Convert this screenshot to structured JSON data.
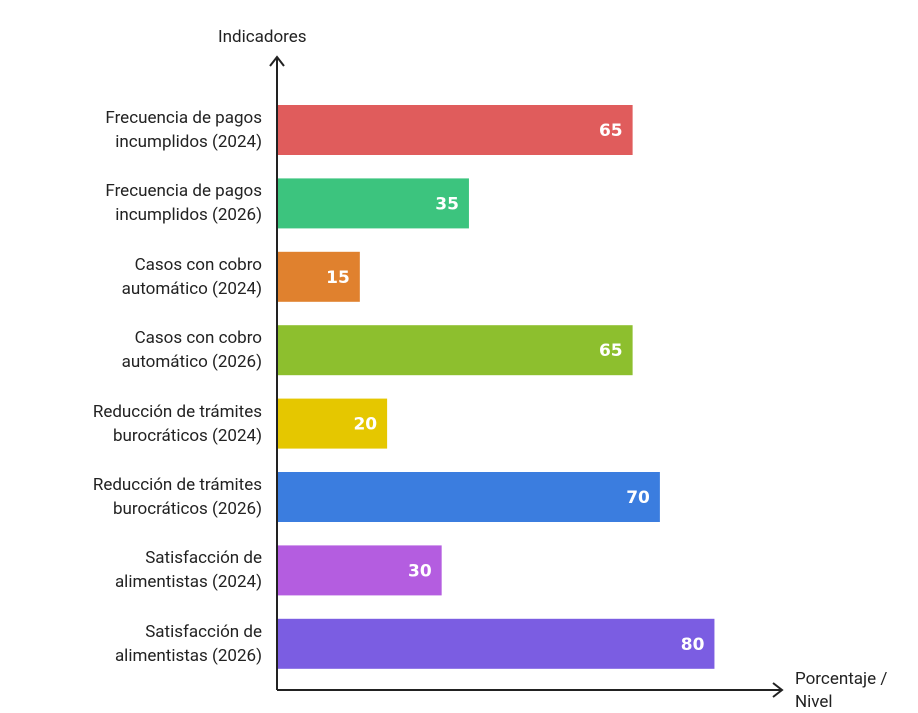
{
  "chart_data": {
    "type": "hbar",
    "y_label": "Indicadores",
    "x_label": "Porcentaje / Nivel",
    "categories": [
      "Frecuencia de pagos incumplidos (2024)",
      "Frecuencia de pagos incumplidos (2026)",
      "Casos con cobro automático (2024)",
      "Casos con cobro automático (2026)",
      "Reducción de trámites burocráticos (2024)",
      "Reducción de trámites burocráticos (2026)",
      "Satisfacción de alimentistas (2024)",
      "Satisfacción de alimentistas (2026)"
    ],
    "values": [
      65,
      35,
      15,
      65,
      20,
      70,
      30,
      80
    ],
    "colors": [
      "#e05c5c",
      "#3cc47e",
      "#e0812e",
      "#8dbf2e",
      "#e5c700",
      "#3b7ddf",
      "#b45de0",
      "#7b5de2"
    ],
    "xlim": [
      0,
      90
    ]
  }
}
